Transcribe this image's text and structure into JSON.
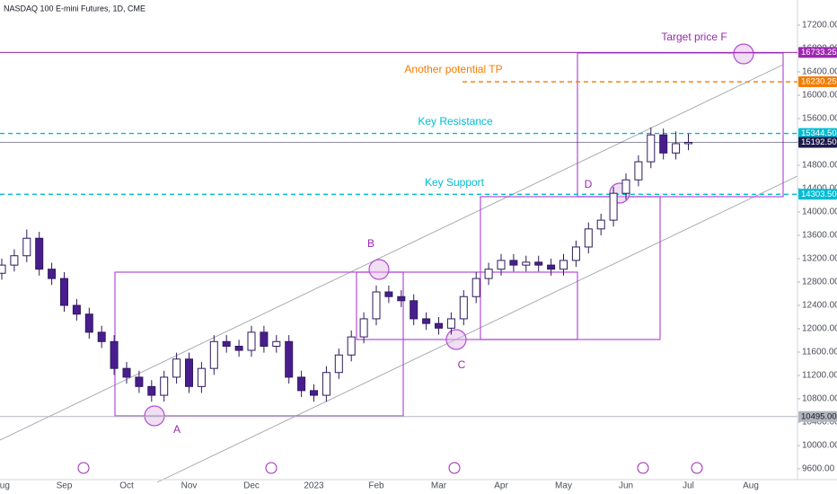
{
  "chart_data": {
    "type": "candlestick",
    "title": "NASDAQ 100 E-mini Futures, 1D, CME",
    "categories": [
      "Aug",
      null,
      null,
      null,
      null,
      "Sep",
      null,
      null,
      null,
      null,
      "Oct",
      null,
      null,
      null,
      null,
      "Nov",
      null,
      null,
      null,
      null,
      "Dec",
      null,
      null,
      null,
      null,
      "2023",
      null,
      null,
      null,
      null,
      "Feb",
      null,
      null,
      null,
      null,
      "Mar",
      null,
      null,
      null,
      null,
      "Apr",
      null,
      null,
      null,
      null,
      "May",
      null,
      null,
      null,
      null,
      "Jun",
      null,
      null,
      null,
      null,
      "Jul",
      null,
      null,
      null,
      null,
      "Aug",
      null,
      null,
      null
    ],
    "series": [
      {
        "up_color": "#ffffff",
        "down_color": "#4a1d8f",
        "outline_color": "#2e1a5c",
        "open": [
          12950,
          13090,
          13250,
          13550,
          13020,
          12860,
          12400,
          12250,
          11940,
          11780,
          11320,
          11170,
          11010,
          10860,
          11170,
          11480,
          11010,
          11320,
          11780,
          11700,
          11630,
          11940,
          11700,
          11780,
          11170,
          10940,
          10860,
          11250,
          11550,
          11860,
          12170,
          12630,
          12550,
          12480,
          12170,
          12090,
          12010,
          12170,
          12550,
          12860,
          13020,
          13170,
          13090,
          13140,
          13090,
          13020,
          13170,
          13400,
          13710,
          13860,
          14320,
          14550,
          14860,
          15320,
          15010,
          15170,
          null,
          null,
          null,
          null,
          null,
          null,
          null,
          null
        ],
        "high": [
          13200,
          13360,
          13700,
          13660,
          13130,
          12970,
          12510,
          12360,
          12050,
          11890,
          11430,
          11280,
          11120,
          11280,
          11590,
          11590,
          11430,
          11890,
          11890,
          11810,
          12050,
          12050,
          11890,
          11890,
          11280,
          11050,
          11360,
          11660,
          11970,
          12280,
          12740,
          12740,
          12660,
          12590,
          12280,
          12200,
          12280,
          12660,
          12970,
          13130,
          13280,
          13280,
          13250,
          13250,
          13200,
          13280,
          13510,
          13820,
          13970,
          14430,
          14660,
          14970,
          15450,
          15430,
          15380,
          15340,
          null,
          null,
          null,
          null,
          null,
          null,
          null,
          null
        ],
        "low": [
          12840,
          12980,
          13140,
          12910,
          12750,
          12290,
          12140,
          11830,
          11670,
          11210,
          11060,
          10900,
          10750,
          10750,
          11060,
          10900,
          10900,
          11210,
          11590,
          11520,
          11520,
          11590,
          11590,
          11060,
          10830,
          10750,
          10750,
          11140,
          11440,
          11750,
          12060,
          12440,
          12370,
          12060,
          11980,
          11900,
          11900,
          12060,
          12440,
          12750,
          12910,
          12980,
          12980,
          12980,
          12910,
          12910,
          13060,
          13290,
          13600,
          13750,
          14210,
          14440,
          14750,
          14900,
          14900,
          15060,
          null,
          null,
          null,
          null,
          null,
          null,
          null,
          null
        ],
        "close": [
          13090,
          13250,
          13550,
          13020,
          12860,
          12400,
          12250,
          11940,
          11780,
          11320,
          11170,
          11010,
          10860,
          11170,
          11480,
          11010,
          11320,
          11780,
          11700,
          11630,
          11940,
          11700,
          11780,
          11170,
          10940,
          10860,
          11250,
          11550,
          11860,
          12170,
          12630,
          12550,
          12480,
          12170,
          12090,
          12010,
          12170,
          12550,
          12860,
          13020,
          13170,
          13090,
          13140,
          13090,
          13020,
          13170,
          13400,
          13710,
          13860,
          14320,
          14550,
          14860,
          15320,
          15010,
          15170,
          15192.5,
          null,
          null,
          null,
          null,
          null,
          null,
          null,
          null
        ]
      }
    ],
    "ylim": [
      9415,
      17631
    ],
    "yticks": [
      {
        "value": 17200,
        "label": "17200.00"
      },
      {
        "value": 16800,
        "label": "16800.00"
      },
      {
        "value": 16400,
        "label": "16400.00"
      },
      {
        "value": 16000,
        "label": "16000.00"
      },
      {
        "value": 15600,
        "label": "15600.00"
      },
      {
        "value": 15200,
        "label": "15200.00"
      },
      {
        "value": 14800,
        "label": "14800.00"
      },
      {
        "value": 14400,
        "label": "14400.00"
      },
      {
        "value": 14000,
        "label": "14000.00"
      },
      {
        "value": 13600,
        "label": "13600.00"
      },
      {
        "value": 13200,
        "label": "13200.00"
      },
      {
        "value": 12800,
        "label": "12800.00"
      },
      {
        "value": 12400,
        "label": "12400.00"
      },
      {
        "value": 12000,
        "label": "12000.00"
      },
      {
        "value": 11600,
        "label": "11600.00"
      },
      {
        "value": 11200,
        "label": "11200.00"
      },
      {
        "value": 10800,
        "label": "10800.00"
      },
      {
        "value": 10400,
        "label": "10400.00"
      },
      {
        "value": 10000,
        "label": "10000.00"
      },
      {
        "value": 9600,
        "label": "9600.00"
      }
    ],
    "grid": false,
    "levels": [
      {
        "value": 16733.25,
        "label": "16733.25",
        "name": "Target price F",
        "color": "#9c27b0",
        "text_color": "#ffffff",
        "style": "solid"
      },
      {
        "value": 16230.25,
        "label": "16230.25",
        "name": "Another potential TP",
        "color": "#f57c00",
        "text_color": "#ffffff",
        "style": "dashed"
      },
      {
        "value": 15344.5,
        "label": "15344.50",
        "name": "Key Resistance",
        "color": "#00bcd4",
        "text_color": "#ffffff",
        "style": "dashed"
      },
      {
        "value": 15192.5,
        "label": "15192.50",
        "color": "#1e1b4b",
        "text_color": "#ffffff",
        "style": "solid"
      },
      {
        "value": 14303.5,
        "label": "14303.50",
        "name": "Key Support",
        "color": "#00bcd4",
        "text_color": "#ffffff",
        "style": "dashed"
      },
      {
        "value": 10495,
        "label": "10495.00",
        "color": "#b2b5be",
        "text_color": "#131722",
        "style": "solid"
      }
    ],
    "annotations": [
      "A",
      "B",
      "C",
      "D"
    ]
  }
}
